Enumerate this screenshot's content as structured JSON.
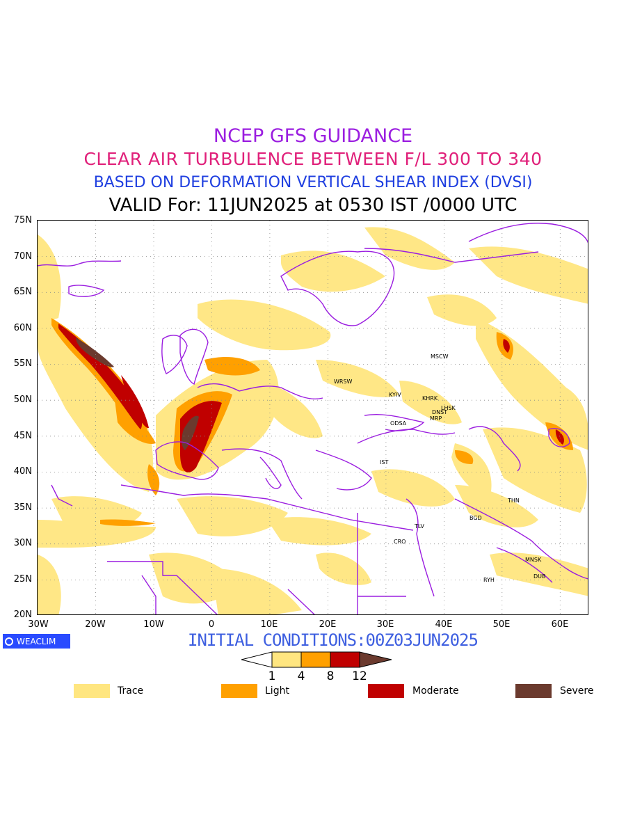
{
  "titles": {
    "line1": "NCEP GFS GUIDANCE",
    "line2": "CLEAR AIR TURBULENCE BETWEEN F/L 300 TO 340",
    "line3": "BASED ON DEFORMATION VERTICAL SHEAR INDEX (DVSI)",
    "line4": "VALID For: 11JUN2025 at 0530 IST /0000 UTC"
  },
  "axes": {
    "lat": [
      "75N",
      "70N",
      "65N",
      "60N",
      "55N",
      "50N",
      "45N",
      "40N",
      "35N",
      "30N",
      "25N",
      "20N"
    ],
    "lon": [
      "30W",
      "20W",
      "10W",
      "0",
      "10E",
      "20E",
      "30E",
      "40E",
      "50E",
      "60E"
    ]
  },
  "cities": [
    {
      "name": "MSCW"
    },
    {
      "name": "WRSW"
    },
    {
      "name": "KYIV"
    },
    {
      "name": "KHRK"
    },
    {
      "name": "LHSK"
    },
    {
      "name": "DNST"
    },
    {
      "name": "MRP"
    },
    {
      "name": "ODSA"
    },
    {
      "name": "IST"
    },
    {
      "name": "THN"
    },
    {
      "name": "BGD"
    },
    {
      "name": "TLV"
    },
    {
      "name": "CRO"
    },
    {
      "name": "MNSK"
    },
    {
      "name": "DUB"
    },
    {
      "name": "RYH"
    }
  ],
  "logo": "WEACLIM",
  "initial_conditions": "INITIAL CONDITIONS:00Z03JUN2025",
  "colorbar": {
    "ticks": [
      "1",
      "4",
      "8",
      "12"
    ],
    "colors": [
      "#ffe680",
      "#ffa000",
      "#c00000",
      "#6b3a2e"
    ]
  },
  "legend": [
    {
      "label": "Trace",
      "color": "#ffe680"
    },
    {
      "label": "Light",
      "color": "#ffa000"
    },
    {
      "label": "Moderate",
      "color": "#c00000"
    },
    {
      "label": "Severe",
      "color": "#6b3a2e"
    }
  ]
}
